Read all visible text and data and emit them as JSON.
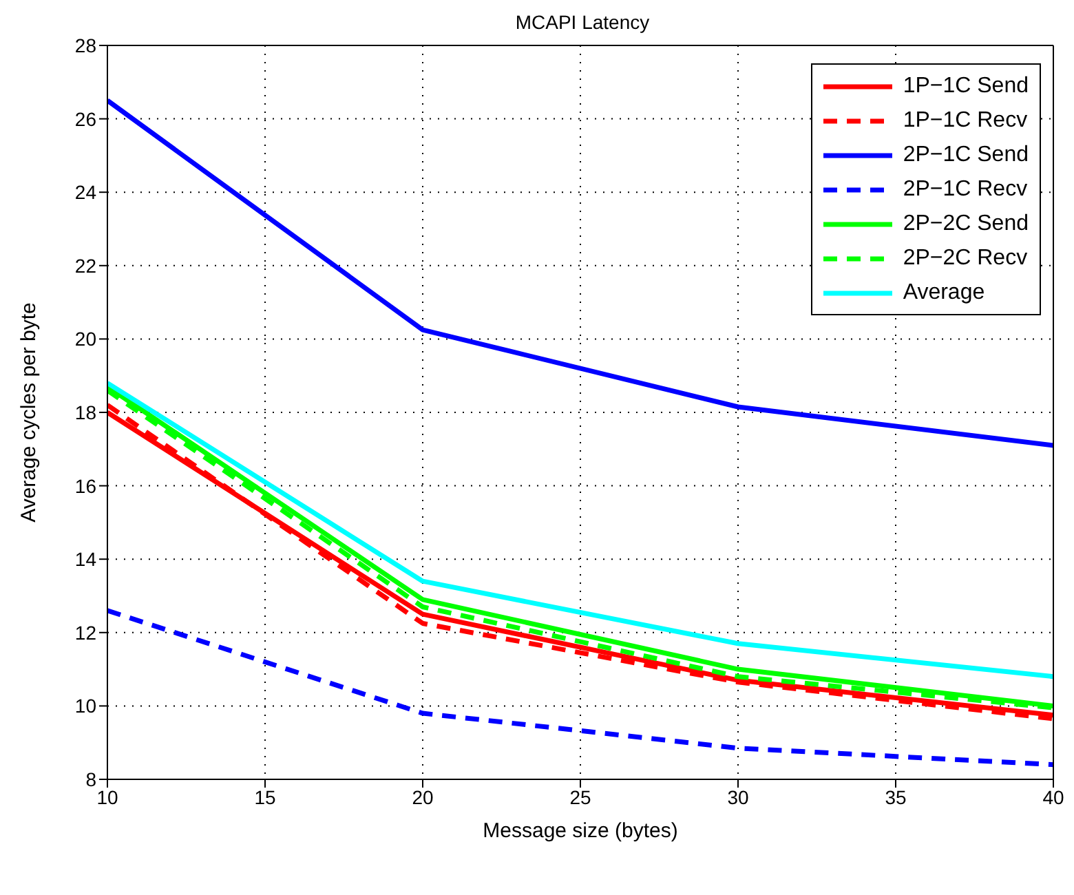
{
  "chart_data": {
    "type": "line",
    "title": "MCAPI Latency",
    "xlabel": "Message size (bytes)",
    "ylabel": "Average cycles per byte",
    "x": [
      10,
      20,
      30,
      40
    ],
    "series": [
      {
        "name": "1P−1C Send",
        "color": "#ff0000",
        "line_style": "solid",
        "values": [
          18.0,
          12.5,
          10.7,
          9.75
        ]
      },
      {
        "name": "1P−1C Recv",
        "color": "#ff0000",
        "line_style": "dashed",
        "values": [
          18.2,
          12.25,
          10.65,
          9.65
        ]
      },
      {
        "name": "2P−1C Send",
        "color": "#0000ff",
        "line_style": "solid",
        "values": [
          26.5,
          20.25,
          18.15,
          17.1
        ]
      },
      {
        "name": "2P−1C Recv",
        "color": "#0000ff",
        "line_style": "dashed",
        "values": [
          12.6,
          9.8,
          8.85,
          8.4
        ]
      },
      {
        "name": "2P−2C Send",
        "color": "#00ff00",
        "line_style": "solid",
        "values": [
          18.7,
          12.9,
          11.0,
          10.0
        ]
      },
      {
        "name": "2P−2C Recv",
        "color": "#00ff00",
        "line_style": "dashed",
        "values": [
          18.6,
          12.7,
          10.8,
          9.95
        ]
      },
      {
        "name": "Average",
        "color": "#00ffff",
        "line_style": "solid",
        "values": [
          18.8,
          13.4,
          11.7,
          10.8
        ]
      }
    ],
    "xlim": [
      10,
      40
    ],
    "xticks": [
      10,
      15,
      20,
      25,
      30,
      35,
      40
    ],
    "ylim": [
      8,
      28
    ],
    "yticks": [
      8,
      10,
      12,
      14,
      16,
      18,
      20,
      22,
      24,
      26,
      28
    ],
    "grid": true,
    "legend": "top right",
    "marker": "none"
  }
}
